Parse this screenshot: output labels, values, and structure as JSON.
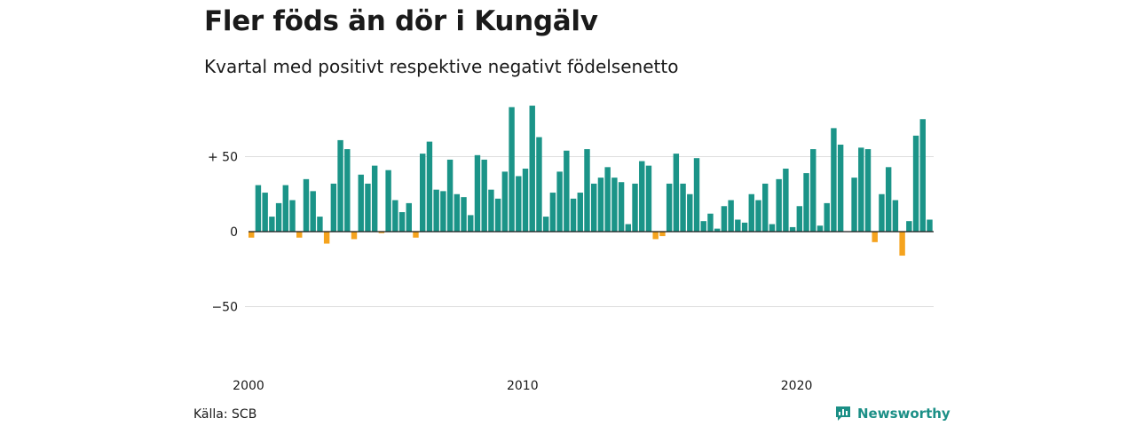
{
  "title": "Fler föds än dör i Kungälv",
  "subtitle": "Kvartal med positivt respektive negativt födelsenetto",
  "source": "Källa: SCB",
  "brand": "Newsworthy",
  "colors": {
    "positive": "#1b9488",
    "negative": "#f5a31e",
    "grid": "#dddddd",
    "baseline": "#1a1a1a",
    "brand": "#1b8f86"
  },
  "chart_data": {
    "type": "bar",
    "x_start": "2000 Q1",
    "x_ticks": [
      "2000",
      "2010",
      "2020"
    ],
    "y_ticks": [
      {
        "value": 50,
        "label": "+ 50"
      },
      {
        "value": 0,
        "label": "0"
      },
      {
        "value": -50,
        "label": "−50"
      }
    ],
    "ylim": [
      -82,
      88
    ],
    "grid": true,
    "values": [
      -4,
      31,
      26,
      10,
      19,
      31,
      21,
      -4,
      35,
      27,
      10,
      -8,
      32,
      61,
      55,
      -5,
      38,
      32,
      44,
      -1,
      41,
      21,
      13,
      19,
      -4,
      52,
      60,
      28,
      27,
      48,
      25,
      23,
      11,
      51,
      48,
      28,
      22,
      40,
      83,
      37,
      42,
      84,
      63,
      10,
      26,
      40,
      54,
      22,
      26,
      55,
      32,
      36,
      43,
      36,
      33,
      5,
      32,
      47,
      44,
      -5,
      -3,
      32,
      52,
      32,
      25,
      49,
      7,
      12,
      2,
      17,
      21,
      8,
      6,
      25,
      21,
      32,
      5,
      35,
      42,
      3,
      17,
      39,
      55,
      4,
      19,
      69,
      58,
      0,
      36,
      56,
      55,
      -7,
      25,
      43,
      21,
      -16,
      7,
      64,
      75,
      8
    ]
  }
}
